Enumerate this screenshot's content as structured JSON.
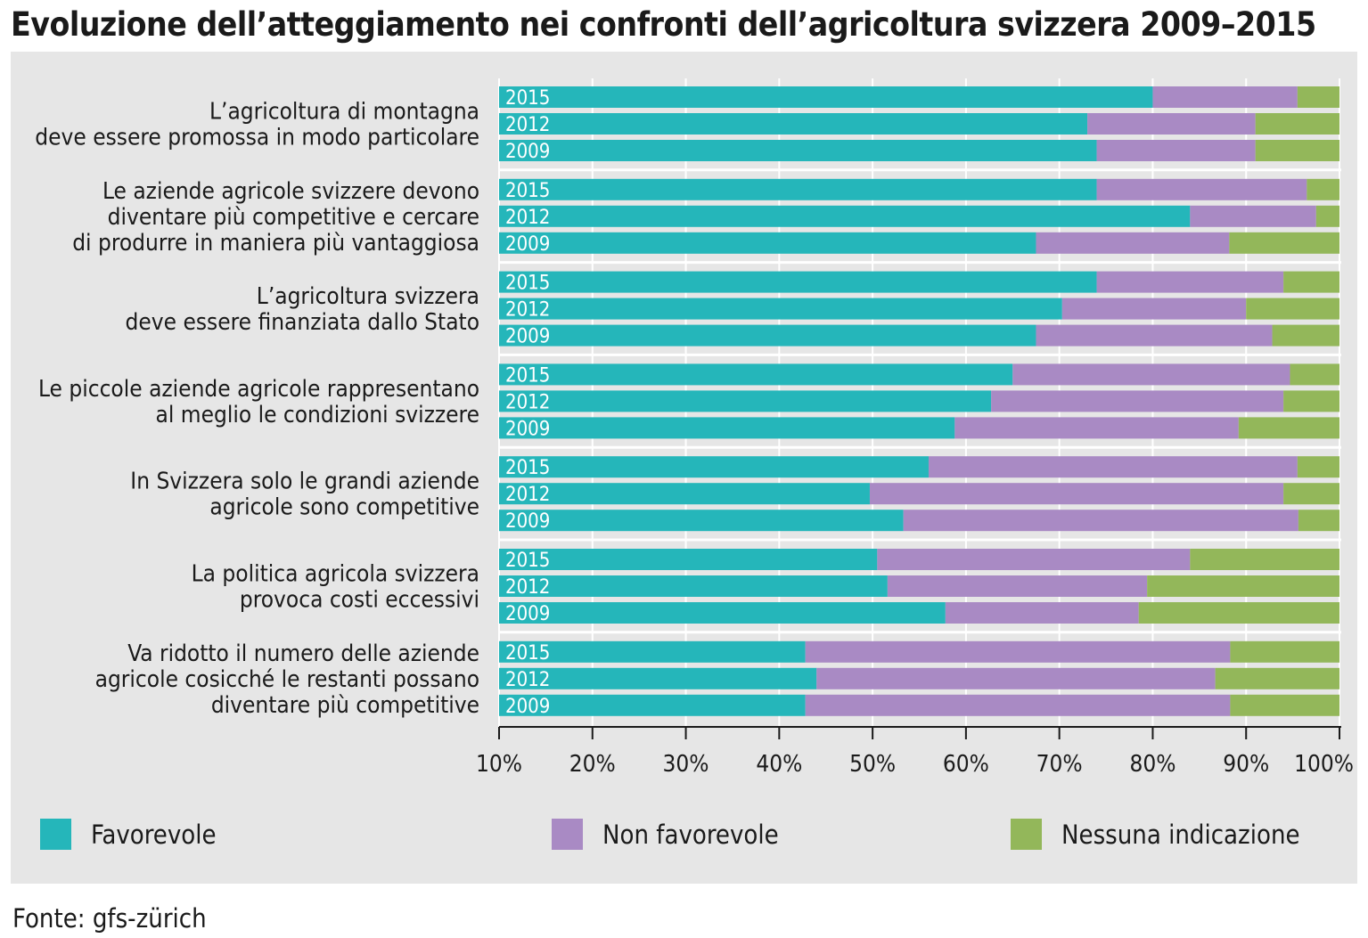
{
  "chart_data": {
    "type": "bar",
    "orientation": "horizontal",
    "stacked": true,
    "title": "Evoluzione dell’atteggiamento nei confronti dell’agricoltura svizzera 2009–2015",
    "source": "Fonte: gfs-zürich",
    "xlim": [
      10,
      100
    ],
    "x_ticks": [
      "10%",
      "20%",
      "30%",
      "40%",
      "50%",
      "60%",
      "70%",
      "80%",
      "90%",
      "100%"
    ],
    "x_tick_values": [
      10,
      20,
      30,
      40,
      50,
      60,
      70,
      80,
      90,
      100
    ],
    "grid": true,
    "legend_position": "bottom",
    "series": [
      {
        "name": "Favorevole",
        "color": "#25b6ba"
      },
      {
        "name": "Non favorevole",
        "color": "#a98ac4"
      },
      {
        "name": "Nessuna indicazione",
        "color": "#93b75a"
      }
    ],
    "years": [
      "2015",
      "2012",
      "2009"
    ],
    "categories": [
      {
        "lines": [
          "L’agricoltura di montagna",
          "deve essere promossa in modo particolare"
        ],
        "rows": [
          {
            "year": "2015",
            "values": [
              80,
              15.5,
              4.5
            ]
          },
          {
            "year": "2012",
            "values": [
              73,
              18,
              9
            ]
          },
          {
            "year": "2009",
            "values": [
              74,
              17,
              9
            ]
          }
        ]
      },
      {
        "lines": [
          "Le aziende agricole svizzere devono",
          "diventare più competitive e cercare",
          "di produrre in maniera più vantaggiosa"
        ],
        "rows": [
          {
            "year": "2015",
            "values": [
              74,
              22.5,
              3.5
            ]
          },
          {
            "year": "2012",
            "values": [
              84,
              13.5,
              2.5
            ]
          },
          {
            "year": "2009",
            "values": [
              67.5,
              20.7,
              11.8
            ]
          }
        ]
      },
      {
        "lines": [
          "L’agricoltura svizzera",
          "deve essere finanziata dallo Stato"
        ],
        "rows": [
          {
            "year": "2015",
            "values": [
              74,
              20,
              6
            ]
          },
          {
            "year": "2012",
            "values": [
              70.3,
              19.7,
              10
            ]
          },
          {
            "year": "2009",
            "values": [
              67.5,
              25.3,
              7.2
            ]
          }
        ]
      },
      {
        "lines": [
          "Le piccole aziende agricole rappresentano",
          "al meglio le condizioni svizzere"
        ],
        "rows": [
          {
            "year": "2015",
            "values": [
              65,
              29.7,
              5.3
            ]
          },
          {
            "year": "2012",
            "values": [
              62.7,
              31.3,
              6
            ]
          },
          {
            "year": "2009",
            "values": [
              58.8,
              30.4,
              10.8
            ]
          }
        ]
      },
      {
        "lines": [
          "In Svizzera solo le grandi aziende",
          "agricole sono competitive"
        ],
        "rows": [
          {
            "year": "2015",
            "values": [
              56,
              39.5,
              4.5
            ]
          },
          {
            "year": "2012",
            "values": [
              49.7,
              44.3,
              6
            ]
          },
          {
            "year": "2009",
            "values": [
              53.3,
              42.3,
              4.4
            ]
          }
        ]
      },
      {
        "lines": [
          "La politica agricola svizzera",
          "provoca costi eccessivi"
        ],
        "rows": [
          {
            "year": "2015",
            "values": [
              50.5,
              33.5,
              16
            ]
          },
          {
            "year": "2012",
            "values": [
              51.6,
              27.8,
              20.6
            ]
          },
          {
            "year": "2009",
            "values": [
              57.8,
              20.7,
              21.5
            ]
          }
        ]
      },
      {
        "lines": [
          "Va ridotto il numero delle aziende",
          "agricole cosicché le restanti possano",
          "diventare più competitive"
        ],
        "rows": [
          {
            "year": "2015",
            "values": [
              42.8,
              45.5,
              11.7
            ]
          },
          {
            "year": "2012",
            "values": [
              44,
              42.7,
              13.3
            ]
          },
          {
            "year": "2009",
            "values": [
              42.8,
              45.5,
              11.7
            ]
          }
        ]
      }
    ]
  }
}
